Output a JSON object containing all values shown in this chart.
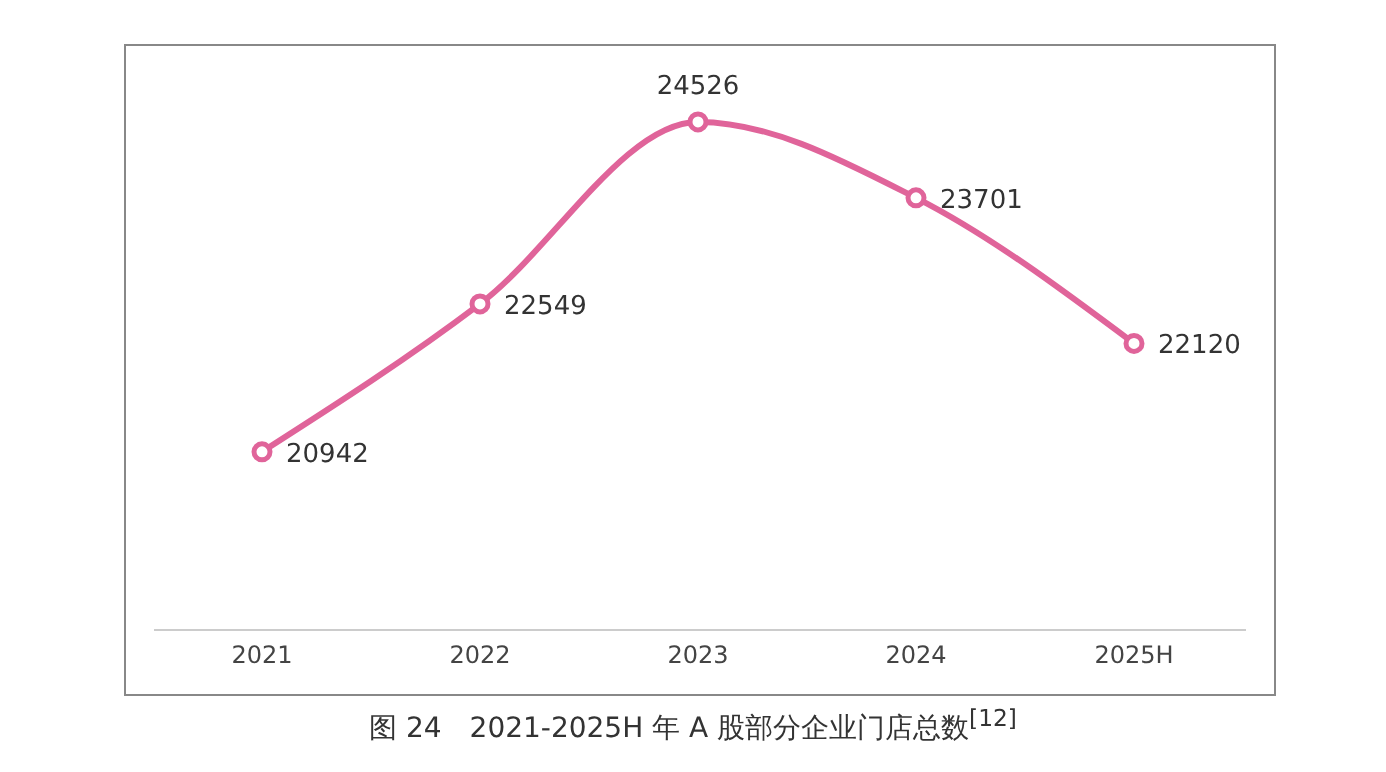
{
  "chart_data": {
    "type": "line",
    "title": "图 24　2021-2025H 年 A 股部分企业门店总数$^{[12]}$",
    "categories": [
      "2021",
      "2022",
      "2023",
      "2024",
      "2025H"
    ],
    "series": [
      {
        "color": "#e0649a",
        "values": [
          20942,
          22549,
          24526,
          23701,
          22120
        ]
      }
    ],
    "data_labels": true,
    "marker": "circle",
    "line_style": "solid",
    "grid": false,
    "legend": false,
    "tick_labels": "x"
  }
}
